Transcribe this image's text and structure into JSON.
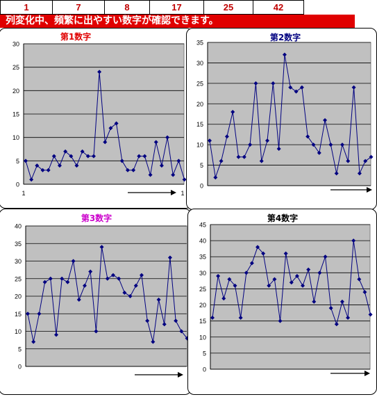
{
  "top_row": [
    "1",
    "7",
    "8",
    "17",
    "25",
    "42"
  ],
  "banner": "列変化中、頻繁に出やすい数字が確認できます。",
  "colors": {
    "red": "#e00000",
    "plot_bg": "#c0c0c0",
    "series": "#000080",
    "title1": "#e00000",
    "title2": "#000080",
    "title3": "#cc00cc",
    "title4": "#000000"
  },
  "chart_data": [
    {
      "type": "line",
      "title": "第1数字",
      "ylim": [
        0,
        30
      ],
      "yticks": [
        "0",
        "5",
        "10",
        "15",
        "20",
        "25",
        "30"
      ],
      "xtick_first": "1",
      "xtick_last": "1",
      "values": [
        5,
        1,
        4,
        3,
        3,
        6,
        4,
        7,
        6,
        4,
        7,
        6,
        6,
        24,
        9,
        12,
        13,
        5,
        3,
        3,
        6,
        6,
        2,
        9,
        4,
        10,
        2,
        5,
        1
      ],
      "grid": true
    },
    {
      "type": "line",
      "title": "第2数字",
      "ylim": [
        0,
        35
      ],
      "yticks": [
        "0",
        "5",
        "10",
        "15",
        "20",
        "25",
        "30",
        "35"
      ],
      "values": [
        11,
        2,
        6,
        12,
        18,
        7,
        7,
        10,
        25,
        6,
        11,
        25,
        9,
        32,
        24,
        23,
        24,
        12,
        10,
        8,
        16,
        10,
        3,
        10,
        6,
        24,
        3,
        6,
        7
      ],
      "grid": true
    },
    {
      "type": "line",
      "title": "第3数字",
      "ylim": [
        0,
        40
      ],
      "yticks": [
        "0",
        "5",
        "10",
        "15",
        "20",
        "25",
        "30",
        "35",
        "40"
      ],
      "values": [
        15,
        7,
        15,
        24,
        25,
        9,
        25,
        24,
        30,
        19,
        23,
        27,
        10,
        34,
        25,
        26,
        25,
        21,
        20,
        23,
        26,
        13,
        7,
        19,
        12,
        31,
        13,
        10,
        8
      ],
      "grid": true
    },
    {
      "type": "line",
      "title": "第4数字",
      "ylim": [
        0,
        45
      ],
      "yticks": [
        "0",
        "5",
        "10",
        "15",
        "20",
        "25",
        "30",
        "35",
        "40",
        "45"
      ],
      "values": [
        16,
        29,
        22,
        28,
        26,
        16,
        30,
        33,
        38,
        36,
        26,
        28,
        15,
        36,
        27,
        29,
        26,
        31,
        21,
        30,
        35,
        19,
        14,
        21,
        16,
        40,
        28,
        24,
        17
      ],
      "grid": true
    }
  ]
}
